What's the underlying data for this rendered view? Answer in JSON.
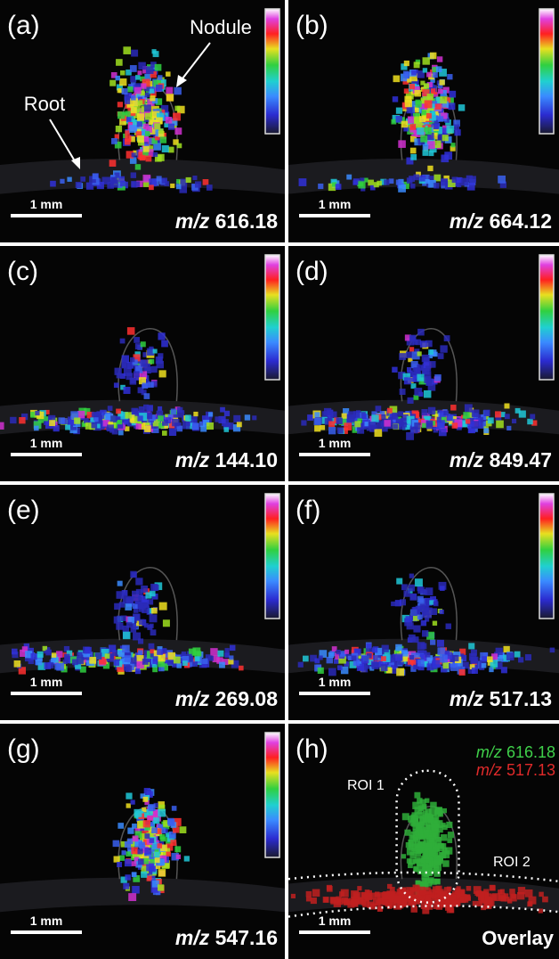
{
  "panels": [
    {
      "label": "(a)",
      "mz_prefix": "m/z",
      "mz": "616.18",
      "scale": "1 mm",
      "annotations": [
        "Nodule",
        "Root"
      ]
    },
    {
      "label": "(b)",
      "mz_prefix": "m/z",
      "mz": "664.12",
      "scale": "1 mm"
    },
    {
      "label": "(c)",
      "mz_prefix": "m/z",
      "mz": "144.10",
      "scale": "1 mm"
    },
    {
      "label": "(d)",
      "mz_prefix": "m/z",
      "mz": "849.47",
      "scale": "1 mm"
    },
    {
      "label": "(e)",
      "mz_prefix": "m/z",
      "mz": "269.08",
      "scale": "1 mm"
    },
    {
      "label": "(f)",
      "mz_prefix": "m/z",
      "mz": "517.13",
      "scale": "1 mm"
    },
    {
      "label": "(g)",
      "mz_prefix": "m/z",
      "mz": "547.16",
      "scale": "1 mm"
    },
    {
      "label": "(h)",
      "scale": "1 mm",
      "overlay": [
        {
          "mz_prefix": "m/z",
          "mz": "616.18"
        },
        {
          "mz_prefix": "m/z",
          "mz": "517.13"
        }
      ],
      "roi": [
        "ROI 1",
        "ROI 2"
      ],
      "caption": "Overlay"
    }
  ]
}
